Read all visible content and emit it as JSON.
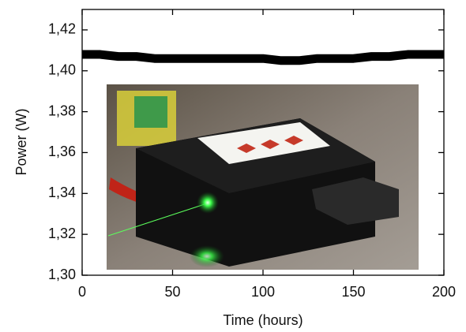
{
  "chart_data": {
    "type": "line",
    "x_label": "Time (hours)",
    "y_label": "Power (W)",
    "x": [
      0,
      10,
      20,
      30,
      40,
      50,
      60,
      70,
      80,
      90,
      100,
      110,
      120,
      130,
      140,
      150,
      160,
      170,
      180,
      190,
      200
    ],
    "values": [
      1.408,
      1.408,
      1.407,
      1.407,
      1.406,
      1.406,
      1.406,
      1.406,
      1.406,
      1.406,
      1.406,
      1.405,
      1.405,
      1.406,
      1.406,
      1.406,
      1.407,
      1.407,
      1.408,
      1.408,
      1.408
    ],
    "color": "#000000",
    "xlim": [
      0,
      200
    ],
    "xticks": [
      0,
      50,
      100,
      150,
      200
    ],
    "ylim": [
      1.3,
      1.43
    ],
    "yticks": [
      {
        "value": 1.3,
        "label": "1,30"
      },
      {
        "value": 1.32,
        "label": "1,32"
      },
      {
        "value": 1.34,
        "label": "1,34"
      },
      {
        "value": 1.36,
        "label": "1,36"
      },
      {
        "value": 1.38,
        "label": "1,38"
      },
      {
        "value": 1.4,
        "label": "1,40"
      },
      {
        "value": 1.42,
        "label": "1,42"
      }
    ],
    "grid": false
  }
}
